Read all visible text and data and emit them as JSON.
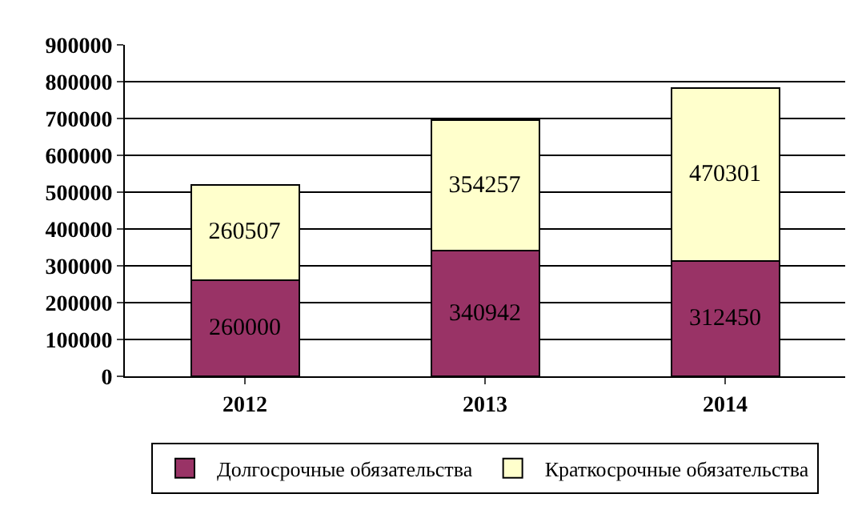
{
  "chart_data": {
    "type": "bar",
    "stacked": true,
    "categories": [
      "2012",
      "2013",
      "2014"
    ],
    "series": [
      {
        "name": "Долгосрочные обязательства",
        "color": "#993366",
        "values": [
          260000,
          340942,
          312450
        ]
      },
      {
        "name": "Краткосрочные обязательства",
        "color": "#ffffcc",
        "values": [
          260507,
          354257,
          470301
        ]
      }
    ],
    "ylim": [
      0,
      900000
    ],
    "yticks": [
      0,
      100000,
      200000,
      300000,
      400000,
      500000,
      600000,
      700000,
      800000,
      900000
    ],
    "grid": "y",
    "legend": "bottom",
    "data_labels": true
  }
}
